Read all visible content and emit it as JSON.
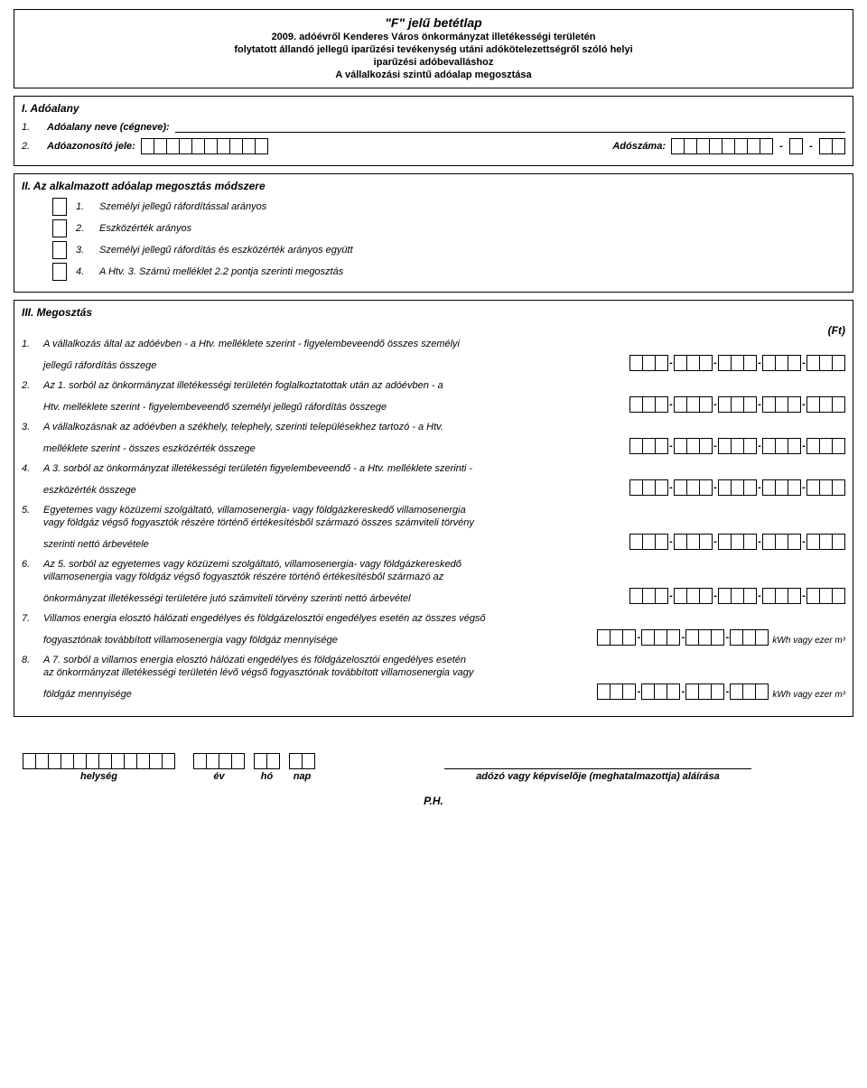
{
  "header": {
    "title": "\"F\" jelű betétlap",
    "line2": "2009. adóévről Kenderes Város önkormányzat illetékességi területén",
    "line3": "folytatott állandó jellegű iparűzési tevékenység utáni adókötelezettségről szóló helyi",
    "line4": "iparűzési adóbevalláshoz",
    "line5": "A vállalkozási szintű adóalap megosztása"
  },
  "sectionI": {
    "head": "I.   Adóalany",
    "row1_num": "1.",
    "row1_label": "Adóalany neve (cégneve):",
    "row2_num": "2.",
    "row2_label": "Adóazonosító jele:",
    "row2_tax_label": "Adószáma:"
  },
  "sectionII": {
    "head": "II.   Az alkalmazott adóalap megosztás módszere",
    "opts": [
      {
        "n": "1.",
        "t": "Személyi jellegű ráfordítással arányos"
      },
      {
        "n": "2.",
        "t": "Eszközérték arányos"
      },
      {
        "n": "3.",
        "t": "Személyi jellegű ráfordítás és eszközérték arányos együtt"
      },
      {
        "n": "4.",
        "t": "A Htv. 3. Számú melléklet 2.2 pontja szerinti megosztás"
      }
    ]
  },
  "sectionIII": {
    "head": "III.   Megosztás",
    "ft": "(Ft)",
    "items": [
      {
        "n": "1.",
        "l1": "A vállalkozás által az adóévben - a Htv. melléklete szerint - figyelembeveendő összes személyi",
        "l2": "jellegű ráfordítás összege",
        "groups": 5,
        "unit": ""
      },
      {
        "n": "2.",
        "l1": "Az 1. sorból az önkormányzat illetékességi területén foglalkoztatottak után az adóévben - a",
        "l2": "Htv. melléklete szerint - figyelembeveendő személyi jellegű ráfordítás összege",
        "groups": 5,
        "unit": ""
      },
      {
        "n": "3.",
        "l1": "A vállalkozásnak az adóévben a székhely, telephely, szerinti településekhez tartozó - a Htv.",
        "l2": "melléklete szerint - összes eszközérték összege",
        "groups": 5,
        "unit": ""
      },
      {
        "n": "4.",
        "l1": "A 3. sorból az önkormányzat illetékességi területén figyelembeveendő - a Htv. melléklete szerinti -",
        "l2": "eszközérték összege",
        "groups": 5,
        "unit": ""
      },
      {
        "n": "5.",
        "l1": "Egyetemes vagy közüzemi szolgáltató, villamosenergia- vagy földgázkereskedő villamosenergia",
        "l2": "vagy földgáz végső fogyasztók részére történő értékesítésből származó összes számviteli törvény",
        "l3": "szerinti nettó árbevétele",
        "groups": 5,
        "unit": ""
      },
      {
        "n": "6.",
        "l1": "Az 5. sorból az egyetemes vagy közüzemi szolgáltató, villamosenergia- vagy földgázkereskedő",
        "l2": "villamosenergia vagy földgáz végső fogyasztók részére történő értékesítésből származó az",
        "l3": "önkormányzat illetékességi területére jutó számviteli törvény szerinti nettó árbevétel",
        "groups": 5,
        "unit": ""
      },
      {
        "n": "7.",
        "l1": "Villamos energia elosztó hálózati engedélyes és földgázelosztói engedélyes esetén az összes végső",
        "l2": "fogyasztónak továbbított villamosenergia vagy földgáz mennyisége",
        "groups": 4,
        "unit": "kWh vagy ezer m³"
      },
      {
        "n": "8.",
        "l1": "A 7. sorból a villamos energia elosztó hálózati engedélyes és földgázelosztói engedélyes esetén",
        "l2": "az önkormányzat illetékességi területén lévő végső fogyasztónak továbbított villamosenergia vagy",
        "l3": "földgáz mennyisége",
        "groups": 4,
        "unit": "kWh vagy ezer m³"
      }
    ]
  },
  "footer": {
    "helyseg": "helység",
    "ev": "év",
    "ho": "hó",
    "nap": "nap",
    "sig": "adózó vagy képviselője (meghatalmazottja) aláírása",
    "ph": "P.H."
  },
  "style": {
    "box_border": "#000000",
    "background": "#ffffff"
  }
}
